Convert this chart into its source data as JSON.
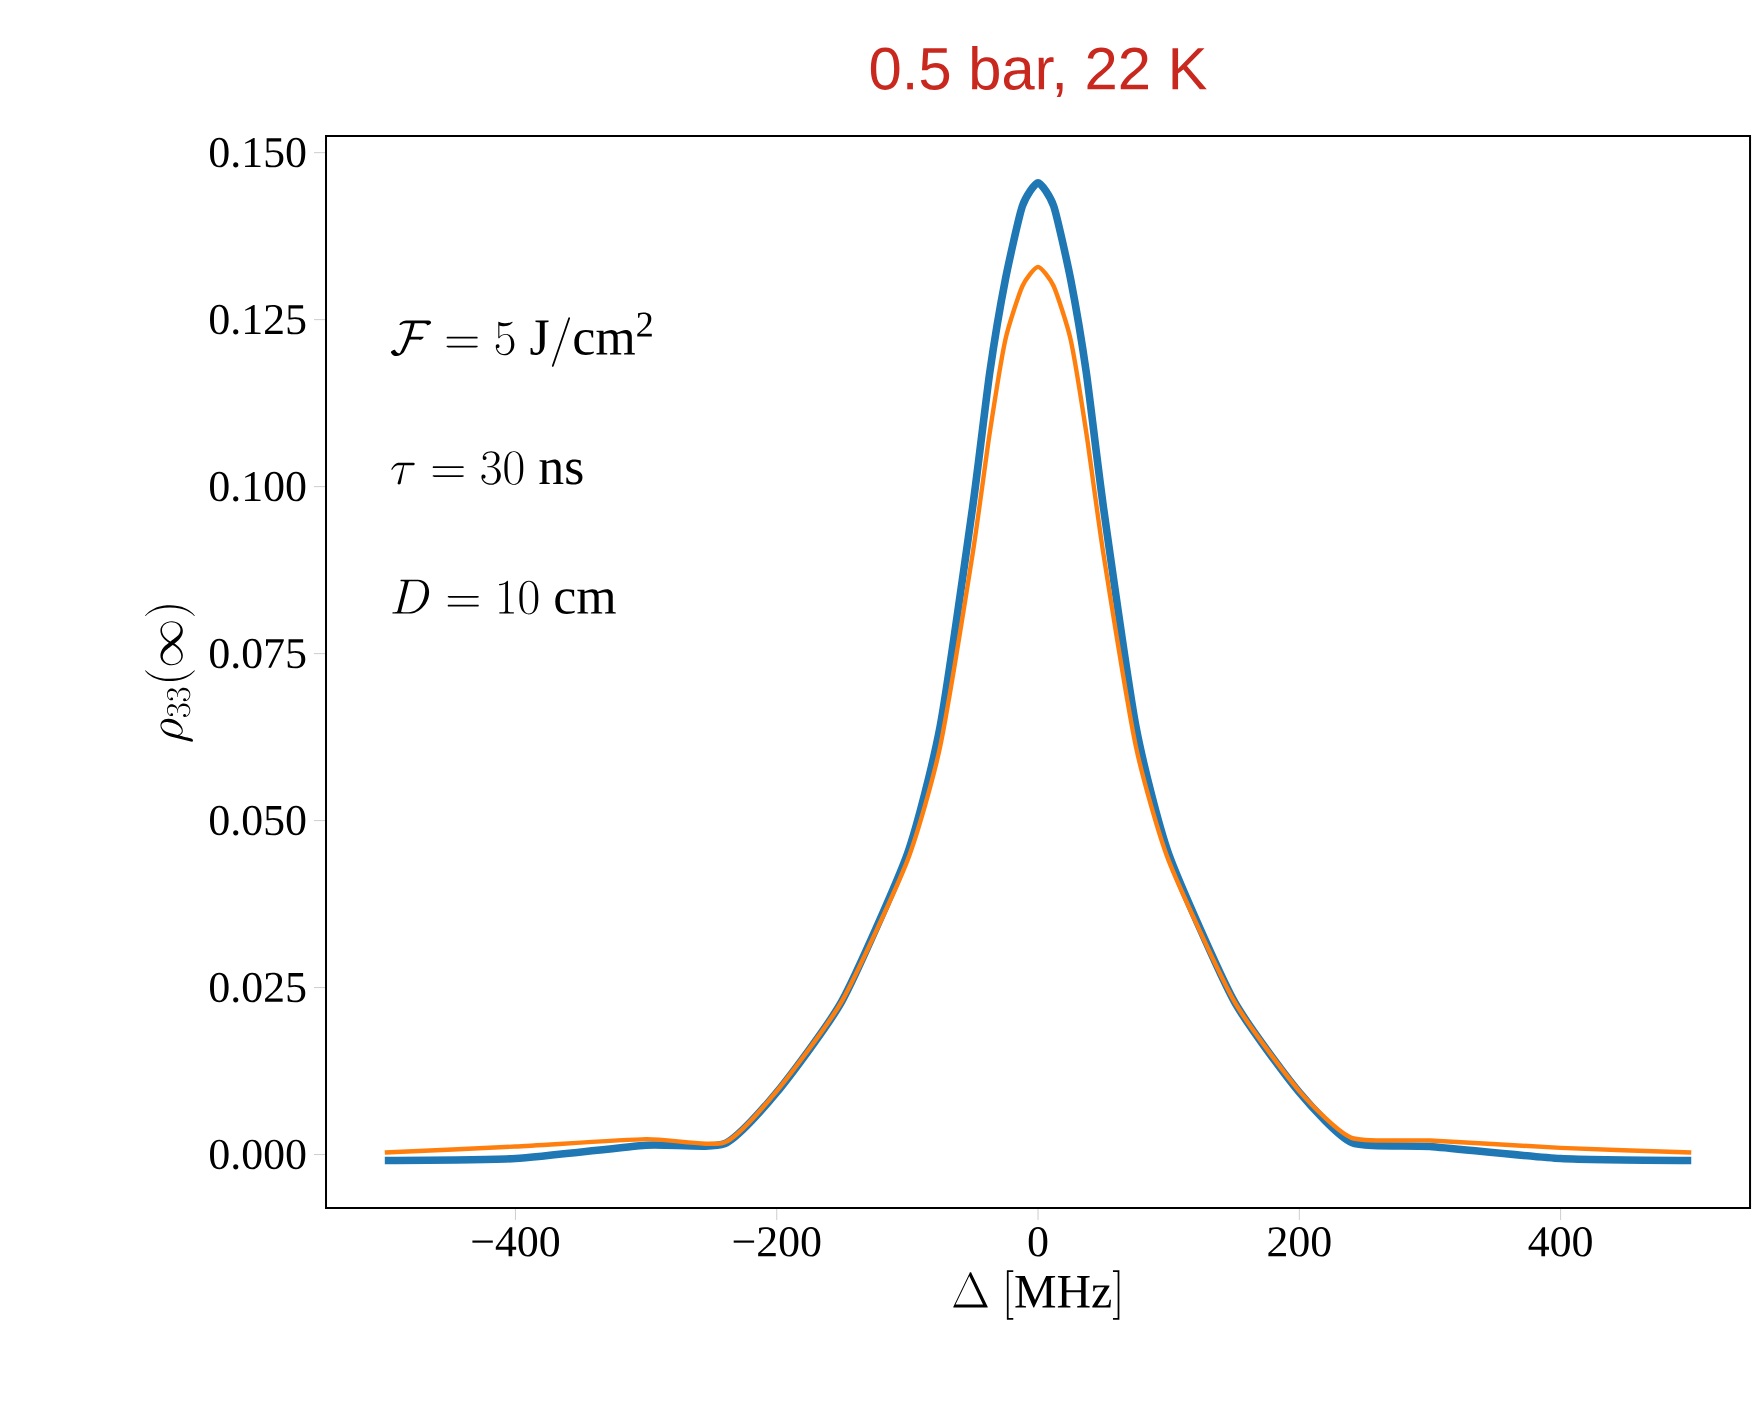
{
  "chart_data": {
    "type": "line",
    "title": "0.5 bar, 22 K",
    "xlabel": "\\Delta\\ [\\mathrm{MHz}]",
    "ylabel": "\\rho_{33}(\\infty)",
    "annotations": [
      "\\mathcal{F} = 5\\ \\mathrm{J/cm^2}",
      "\\tau = 30\\ \\mathrm{ns}",
      "D = 10\\ \\mathrm{cm}"
    ],
    "x": [
      -500,
      -400,
      -300,
      -240,
      -200,
      -150,
      -100,
      -75,
      -50,
      -37,
      -25,
      -12,
      0,
      12,
      25,
      37,
      50,
      75,
      100,
      150,
      200,
      240,
      300,
      400,
      500
    ],
    "series": [
      {
        "color": "#1f77b4",
        "values": [
          -0.0009,
          -0.0006,
          0.0014,
          0.0016,
          0.0093,
          0.023,
          0.045,
          0.064,
          0.097,
          0.117,
          0.131,
          0.142,
          0.1455,
          0.142,
          0.131,
          0.117,
          0.097,
          0.064,
          0.045,
          0.023,
          0.0093,
          0.0018,
          0.0012,
          -0.0006,
          -0.0009
        ]
      },
      {
        "color": "#ff7f0e",
        "values": [
          0.0003,
          0.0012,
          0.0023,
          0.0018,
          0.0095,
          0.023,
          0.044,
          0.061,
          0.09,
          0.108,
          0.122,
          0.13,
          0.1329,
          0.13,
          0.122,
          0.108,
          0.09,
          0.061,
          0.044,
          0.023,
          0.0095,
          0.0025,
          0.0021,
          0.001,
          0.0003
        ]
      }
    ],
    "xlim": [
      -545,
      545
    ],
    "ylim": [
      -0.008,
      0.1525
    ],
    "xticks": [
      {
        "value": -400,
        "label": "−400"
      },
      {
        "value": -200,
        "label": "−200"
      },
      0,
      200,
      400
    ],
    "yticks": [
      {
        "value": 0,
        "label": "0.000"
      },
      {
        "value": 0.025,
        "label": "0.025"
      },
      {
        "value": 0.05,
        "label": "0.050"
      },
      {
        "value": 0.075,
        "label": "0.075"
      },
      {
        "value": 0.1,
        "label": "0.100"
      },
      {
        "value": 0.125,
        "label": "0.125"
      },
      {
        "value": 0.15,
        "label": "0.150"
      }
    ],
    "grid": false,
    "marker": "none",
    "line_style": "solid"
  }
}
